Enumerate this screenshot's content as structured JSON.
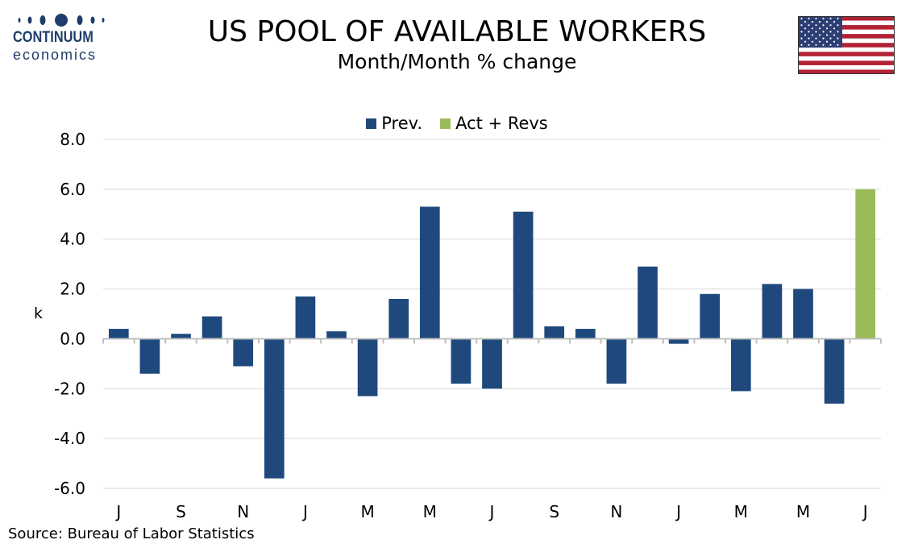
{
  "header": {
    "logo_name": "CONTINUUM",
    "logo_sub": "economics",
    "title": "US POOL OF AVAILABLE WORKERS",
    "subtitle": "Month/Month % change"
  },
  "footer": {
    "source": "Source: Bureau of Labor Statistics"
  },
  "colors": {
    "prev": "#1f497d",
    "act": "#9bbb59",
    "grid": "#d9d9d9",
    "axis": "#bfbfbf",
    "logo": "#1f3d6b"
  },
  "chart_data": {
    "type": "bar",
    "title": "US POOL OF AVAILABLE WORKERS",
    "subtitle": "Month/Month % change",
    "xlabel": "",
    "ylabel": "k",
    "ylim": [
      -6.0,
      8.0
    ],
    "yticks": [
      "8.0",
      "6.0",
      "4.0",
      "2.0",
      "0.0",
      "-2.0",
      "-4.0",
      "-6.0"
    ],
    "x_tick_labels": [
      "J",
      "S",
      "N",
      "J",
      "M",
      "M",
      "J",
      "S",
      "N",
      "J",
      "M",
      "M",
      "J"
    ],
    "grid": true,
    "legend_position": "top-center",
    "series": [
      {
        "name": "Prev.",
        "values": [
          0.4,
          -1.4,
          0.2,
          0.9,
          -1.1,
          -5.6,
          1.7,
          0.3,
          -2.3,
          1.6,
          5.3,
          -1.8,
          -2.0,
          5.1,
          0.5,
          0.4,
          -1.8,
          2.9,
          -0.2,
          1.8,
          -2.1,
          2.2,
          2.0,
          -2.6,
          null
        ]
      },
      {
        "name": "Act + Revs",
        "values": [
          null,
          null,
          null,
          null,
          null,
          null,
          null,
          null,
          null,
          null,
          null,
          null,
          null,
          null,
          null,
          null,
          null,
          null,
          null,
          null,
          null,
          null,
          null,
          null,
          6.0
        ]
      }
    ]
  }
}
